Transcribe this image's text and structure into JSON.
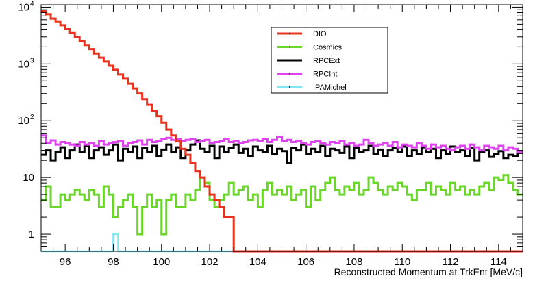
{
  "chart_data": {
    "type": "line",
    "title": "",
    "xlabel": "Reconstructed Momentum at TrkEnt [MeV/c]",
    "ylabel": "",
    "xscale": "linear",
    "yscale": "log",
    "xlim": [
      95,
      115
    ],
    "ylim": [
      0.5,
      11000
    ],
    "grid": false,
    "legend_position": "top-center",
    "x_ticks": [
      96,
      98,
      100,
      102,
      104,
      106,
      108,
      110,
      112,
      114
    ],
    "x_tick_labels": [
      "96",
      "98",
      "100",
      "102",
      "104",
      "106",
      "108",
      "110",
      "112",
      "114"
    ],
    "y_ticks": [
      1,
      10,
      100,
      1000,
      10000
    ],
    "y_tick_labels": [
      {
        "base": "1",
        "exp": ""
      },
      {
        "base": "10",
        "exp": ""
      },
      {
        "base": "10",
        "exp": "2"
      },
      {
        "base": "10",
        "exp": "3"
      },
      {
        "base": "10",
        "exp": "4"
      }
    ],
    "bin_start": 95,
    "bin_width": 0.2,
    "series": [
      {
        "name": "DIO",
        "color": "#e8321e",
        "values": [
          8500,
          7500,
          6300,
          5600,
          4800,
          4100,
          3500,
          2950,
          2500,
          2150,
          1830,
          1520,
          1290,
          1100,
          930,
          790,
          650,
          550,
          450,
          370,
          300,
          240,
          190,
          150,
          120,
          92,
          70,
          55,
          43,
          32,
          25,
          18,
          13,
          10,
          7,
          5,
          4,
          3,
          2,
          2,
          0.5,
          0.5,
          0.5,
          0.5,
          0.5,
          0.5,
          0.5,
          0.5,
          0.5,
          0.5,
          0.5,
          0.5,
          0.5,
          0.5,
          0.5,
          0.5,
          0.5,
          0.5,
          0.5,
          0.5,
          0.5,
          0.5,
          0.5,
          0.5,
          0.5,
          0.5,
          0.5,
          0.5,
          0.5,
          0.5,
          0.5,
          0.5,
          0.5,
          0.5,
          0.5,
          0.5,
          0.5,
          0.5,
          0.5,
          0.5,
          0.5,
          0.5,
          0.5,
          0.5,
          0.5,
          0.5,
          0.5,
          0.5,
          0.5,
          0.5,
          0.5,
          0.5,
          0.5,
          0.5,
          0.5,
          0.5,
          0.5,
          0.5,
          0.5,
          0.5
        ]
      },
      {
        "name": "Cosmics",
        "color": "#6bd62a",
        "values": [
          4,
          7,
          3,
          3,
          5,
          4,
          5,
          6,
          5,
          4,
          6,
          5,
          3,
          7,
          5,
          2,
          3,
          4,
          5,
          3,
          1,
          3,
          5,
          3,
          4,
          1,
          4,
          5,
          3,
          3,
          5,
          4,
          6,
          10,
          8,
          4,
          3,
          4,
          5,
          8,
          5,
          6,
          7,
          4,
          5,
          3,
          6,
          8,
          5,
          6,
          5,
          7,
          4,
          5,
          6,
          3,
          7,
          4,
          6,
          8,
          10,
          6,
          5,
          7,
          6,
          8,
          5,
          6,
          10,
          8,
          6,
          5,
          7,
          6,
          8,
          7,
          5,
          4,
          6,
          6,
          8,
          5,
          7,
          6,
          5,
          8,
          6,
          7,
          5,
          6,
          5,
          7,
          8,
          6,
          10,
          9,
          11,
          8,
          6,
          5
        ]
      },
      {
        "name": "RPCExt",
        "color": "#000000",
        "values": [
          25,
          30,
          20,
          28,
          34,
          22,
          30,
          38,
          28,
          36,
          22,
          30,
          34,
          25,
          30,
          38,
          20,
          32,
          28,
          35,
          22,
          33,
          28,
          36,
          24,
          31,
          38,
          28,
          34,
          22,
          30,
          38,
          45,
          32,
          28,
          36,
          22,
          35,
          28,
          33,
          38,
          27,
          32,
          24,
          35,
          30,
          28,
          36,
          26,
          32,
          29,
          18,
          33,
          30,
          38,
          26,
          32,
          28,
          36,
          24,
          32,
          30,
          27,
          35,
          22,
          33,
          28,
          30,
          36,
          26,
          31,
          24,
          30,
          33,
          28,
          35,
          24,
          30,
          26,
          34,
          28,
          32,
          22,
          30,
          26,
          35,
          28,
          30,
          24,
          33,
          20,
          28,
          30,
          23,
          26,
          29,
          22,
          25,
          24,
          27
        ]
      },
      {
        "name": "RPCInt",
        "color": "#dd44ee",
        "values": [
          55,
          40,
          45,
          38,
          42,
          40,
          38,
          36,
          42,
          38,
          40,
          36,
          44,
          38,
          40,
          42,
          44,
          36,
          40,
          42,
          45,
          38,
          46,
          42,
          44,
          48,
          50,
          46,
          48,
          44,
          46,
          48,
          42,
          44,
          46,
          40,
          42,
          44,
          48,
          42,
          44,
          40,
          42,
          45,
          46,
          44,
          48,
          42,
          46,
          52,
          44,
          46,
          42,
          44,
          40,
          38,
          42,
          44,
          40,
          38,
          42,
          40,
          44,
          38,
          40,
          36,
          38,
          46,
          40,
          36,
          38,
          40,
          36,
          42,
          34,
          38,
          36,
          34,
          40,
          36,
          32,
          38,
          34,
          36,
          32,
          30,
          34,
          36,
          32,
          38,
          34,
          30,
          36,
          34,
          32,
          36,
          30,
          34,
          32,
          28
        ]
      },
      {
        "name": "IPAMichel",
        "color": "#7fe6f2",
        "values": [
          0.5,
          0.5,
          0.5,
          0.5,
          0.5,
          0.5,
          0.5,
          0.5,
          0.5,
          0.5,
          0.5,
          0.5,
          0.5,
          0.5,
          0.5,
          1,
          0.5,
          0.5,
          0.5,
          0.5,
          0.5,
          0.5,
          0.5,
          0.5,
          0.5,
          0.5,
          0.5,
          0.5,
          0.5,
          0.5,
          0.5,
          0.5,
          0.5,
          0.5,
          0.5,
          0.5,
          0.5,
          0.5,
          0.5,
          0.5,
          0.5,
          0.5,
          0.5,
          0.5,
          0.5,
          0.5,
          0.5,
          0.5,
          0.5,
          0.5,
          0.5,
          0.5,
          0.5,
          0.5,
          0.5,
          0.5,
          0.5,
          0.5,
          0.5,
          0.5,
          0.5,
          0.5,
          0.5,
          0.5,
          0.5,
          0.5,
          0.5,
          0.5,
          0.5,
          0.5,
          0.5,
          0.5,
          0.5,
          0.5,
          0.5,
          0.5,
          0.5,
          0.5,
          0.5,
          0.5,
          0.5,
          0.5,
          0.5,
          0.5,
          0.5,
          0.5,
          0.5,
          0.5,
          0.5,
          0.5,
          0.5,
          0.5,
          0.5,
          0.5,
          0.5,
          0.5,
          0.5,
          0.5,
          0.5,
          0.5
        ]
      }
    ]
  }
}
